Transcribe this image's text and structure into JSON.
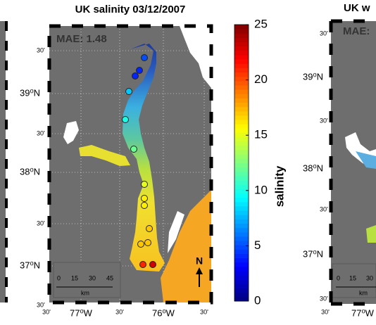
{
  "main_panel": {
    "title": "UK salinity 03/12/2007",
    "mae": "MAE: 1.48",
    "lat_labels": [
      "30'",
      "39⁰N",
      "30'",
      "38⁰N",
      "30'",
      "37⁰N",
      "30'"
    ],
    "lon_labels": [
      "30'",
      "77⁰W",
      "30'",
      "76⁰W",
      "30'"
    ],
    "scale_bar": {
      "ticks": [
        "0",
        "15",
        "30",
        "45"
      ],
      "unit": "km"
    },
    "north": "N",
    "stations": [
      {
        "salinity": 5
      },
      {
        "salinity": 4
      },
      {
        "salinity": 4
      },
      {
        "salinity": 8
      },
      {
        "salinity": 10
      },
      {
        "salinity": 12
      },
      {
        "salinity": 15
      },
      {
        "salinity": 16
      },
      {
        "salinity": 16
      },
      {
        "salinity": 17
      },
      {
        "salinity": 17
      },
      {
        "salinity": 17
      },
      {
        "salinity": 21
      },
      {
        "salinity": 23
      }
    ]
  },
  "colorbar": {
    "label": "salinity",
    "lim": [
      0,
      25
    ],
    "ticks": [
      0,
      5,
      10,
      15,
      20,
      25
    ]
  },
  "right_panel": {
    "title": "UK w",
    "mae": "MAE:",
    "lat_labels": [
      "30'",
      "39⁰N",
      "30'",
      "38⁰N",
      "30'",
      "37⁰N",
      "30'"
    ],
    "lon_labels": [
      "30'",
      "77⁰W"
    ],
    "scale_bar": {
      "ticks": [
        "0",
        "15",
        "30"
      ],
      "unit": "km"
    }
  }
}
